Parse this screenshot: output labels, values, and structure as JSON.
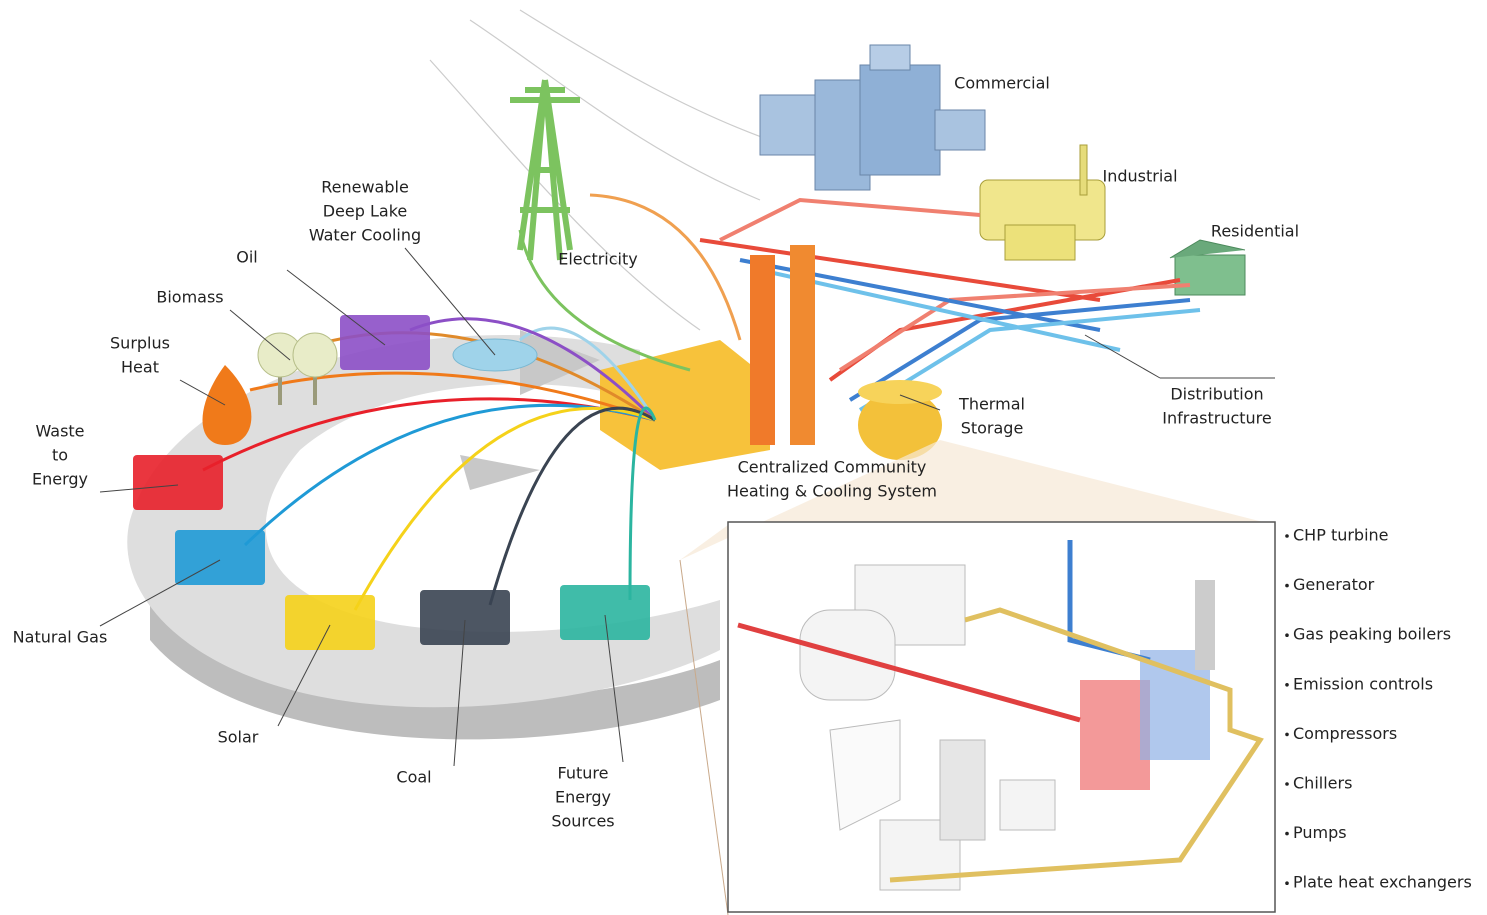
{
  "sources": [
    {
      "label": [
        "Renewable",
        "Deep Lake",
        "Water Cooling"
      ]
    },
    {
      "label": [
        "Oil"
      ]
    },
    {
      "label": [
        "Biomass"
      ]
    },
    {
      "label": [
        "Surplus",
        "Heat"
      ]
    },
    {
      "label": [
        "Waste",
        "to",
        "Energy"
      ]
    },
    {
      "label": [
        "Natural Gas"
      ]
    },
    {
      "label": [
        "Solar"
      ]
    },
    {
      "label": [
        "Coal"
      ]
    },
    {
      "label": [
        "Future",
        "Energy",
        "Sources"
      ]
    }
  ],
  "plant": {
    "label": [
      "Centralized Community",
      "Heating & Cooling System"
    ]
  },
  "electricity": {
    "label": [
      "Electricity"
    ]
  },
  "thermal_storage": {
    "label": [
      "Thermal",
      "Storage"
    ]
  },
  "consumers": [
    {
      "label": [
        "Commercial"
      ]
    },
    {
      "label": [
        "Industrial"
      ]
    },
    {
      "label": [
        "Residential"
      ]
    }
  ],
  "distribution": {
    "label": [
      "Distribution",
      "Infrastructure"
    ]
  },
  "equipment": [
    "CHP turbine",
    "Generator",
    "Gas peaking boilers",
    "Emission controls",
    "Compressors",
    "Chillers",
    "Pumps",
    "Plate heat exchangers"
  ]
}
